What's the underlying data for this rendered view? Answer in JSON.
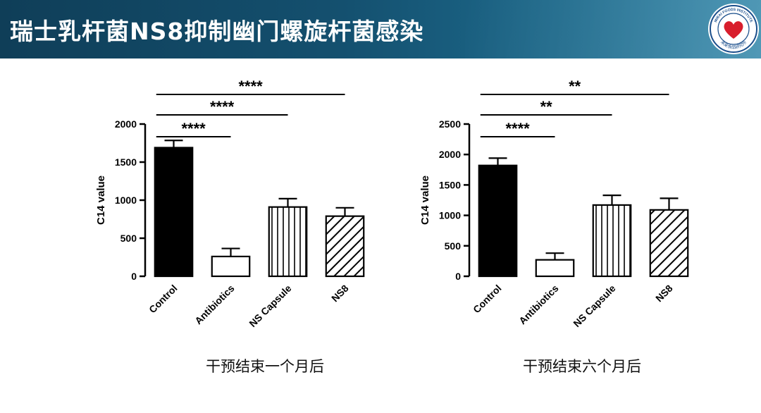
{
  "slide": {
    "title": "瑞士乳杆菌NS8抑制幽门螺旋杆菌感染",
    "logo_text": [
      "MIRAI FOODS INSTITUTE",
      "未来食品研究所"
    ]
  },
  "colors": {
    "header_dark": "#0f3e58",
    "header_light": "#2a82a6",
    "logo_border": "#1b4f8c",
    "logo_heart": "#d81e2c"
  },
  "chart_data": [
    {
      "type": "bar",
      "caption": "干预结束一个月后",
      "ylabel": "C14 value",
      "ylim": [
        0,
        2000
      ],
      "yticks": [
        0,
        500,
        1000,
        1500,
        2000
      ],
      "categories": [
        "Control",
        "Antibiotics",
        "NS Capsule",
        "NS8"
      ],
      "values": [
        1690,
        260,
        910,
        790
      ],
      "errors": [
        95,
        105,
        110,
        110
      ],
      "patterns": [
        "solid",
        "empty",
        "vertical",
        "diagonal"
      ],
      "significance": [
        {
          "from": 0,
          "to": 1,
          "label": "****",
          "level": 0
        },
        {
          "from": 0,
          "to": 2,
          "label": "****",
          "level": 1
        },
        {
          "from": 0,
          "to": 3,
          "label": "****",
          "level": 2
        }
      ]
    },
    {
      "type": "bar",
      "caption": "干预结束六个月后",
      "ylabel": "C14 value",
      "ylim": [
        0,
        2500
      ],
      "yticks": [
        0,
        500,
        1000,
        1500,
        2000,
        2500
      ],
      "categories": [
        "Control",
        "Antibiotics",
        "NS Capsule",
        "NS8"
      ],
      "values": [
        1820,
        270,
        1170,
        1090
      ],
      "errors": [
        120,
        110,
        160,
        190
      ],
      "patterns": [
        "solid",
        "empty",
        "vertical",
        "diagonal"
      ],
      "significance": [
        {
          "from": 0,
          "to": 1,
          "label": "****",
          "level": 0
        },
        {
          "from": 0,
          "to": 2,
          "label": "**",
          "level": 1
        },
        {
          "from": 0,
          "to": 3,
          "label": "**",
          "level": 2
        }
      ]
    }
  ]
}
